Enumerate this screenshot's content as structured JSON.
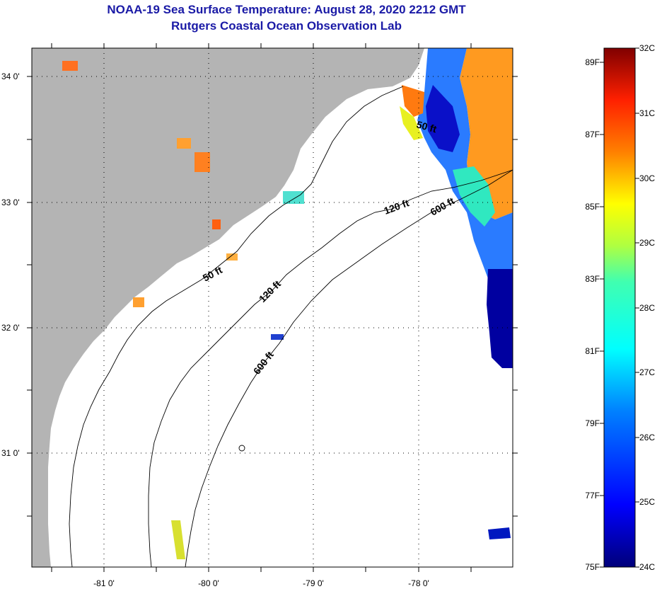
{
  "title": "NOAA-19 Sea Surface Temperature:  August 28, 2020 2212 GMT",
  "subtitle": "Rutgers Coastal Ocean Observation Lab",
  "lat_labels": [
    "34 0'",
    "33 0'",
    "32 0'",
    "31 0'"
  ],
  "lon_labels": [
    "-81 0'",
    "-80 0'",
    "-79 0'",
    "-78 0'"
  ],
  "contours": {
    "c50a": "50 ft",
    "c50b": "50 ft",
    "c120a": "120 ft",
    "c120b": "120 ft",
    "c600a": "600 ft",
    "c600b": "600 ft"
  },
  "colorbar": {
    "fahrenheit": [
      "89F",
      "87F",
      "85F",
      "83F",
      "81F",
      "79F",
      "77F",
      "75F"
    ],
    "celsius": [
      "32C",
      "31C",
      "30C",
      "29C",
      "28C",
      "27C",
      "26C",
      "25C",
      "24C"
    ]
  },
  "colors": {
    "land": "#b4b4b4",
    "ocean": "#ffffff",
    "title": "#1a1aa6"
  }
}
